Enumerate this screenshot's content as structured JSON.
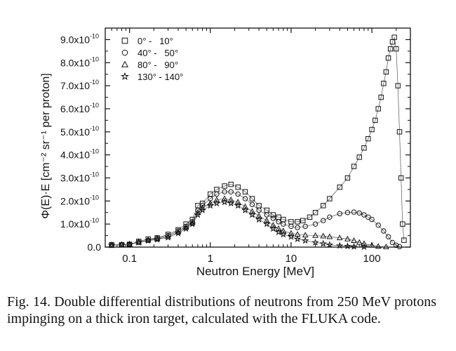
{
  "chart_data": {
    "type": "scatter",
    "title": "",
    "xlabel": "Neutron Energy [MeV]",
    "ylabel": "Φ(E)·E [cm⁻² sr⁻¹ per proton]",
    "x_scale": "log",
    "xlim": [
      0.05,
      300
    ],
    "ylim": [
      0,
      9.5e-10
    ],
    "x_ticks": [
      {
        "value": 0.1,
        "label": "0.1"
      },
      {
        "value": 1,
        "label": "1"
      },
      {
        "value": 10,
        "label": "10"
      },
      {
        "value": 100,
        "label": "100"
      }
    ],
    "y_ticks": [
      {
        "value": 0,
        "label": "0.0"
      },
      {
        "value": 1e-10,
        "label": "1.0x10",
        "exp": "-10"
      },
      {
        "value": 2e-10,
        "label": "2.0x10",
        "exp": "-10"
      },
      {
        "value": 3e-10,
        "label": "3.0x10",
        "exp": "-10"
      },
      {
        "value": 4e-10,
        "label": "4.0x10",
        "exp": "-10"
      },
      {
        "value": 5e-10,
        "label": "5.0x10",
        "exp": "-10"
      },
      {
        "value": 6e-10,
        "label": "6.0x10",
        "exp": "-10"
      },
      {
        "value": 7e-10,
        "label": "7.0x10",
        "exp": "-10"
      },
      {
        "value": 8e-10,
        "label": "8.0x10",
        "exp": "-10"
      },
      {
        "value": 9e-10,
        "label": "9.0x10",
        "exp": "-10"
      }
    ],
    "grid": false,
    "legend_position": "top-left",
    "series": [
      {
        "name": "0° - 10°",
        "marker": "square",
        "x": [
          0.06,
          0.08,
          0.1,
          0.13,
          0.17,
          0.22,
          0.3,
          0.4,
          0.5,
          0.6,
          0.7,
          0.8,
          1.0,
          1.2,
          1.5,
          1.8,
          2.2,
          2.7,
          3.3,
          4,
          5,
          6,
          7,
          8,
          10,
          12,
          14,
          17,
          20,
          25,
          30,
          40,
          50,
          60,
          70,
          80,
          90,
          100,
          110,
          120,
          130,
          140,
          150,
          160,
          170,
          180,
          190,
          200,
          210,
          220,
          230,
          240,
          250
        ],
        "y": [
          1e-11,
          1e-11,
          1.2e-11,
          2.5e-11,
          3.5e-11,
          4e-11,
          5.5e-11,
          7.5e-11,
          1e-10,
          1.2e-10,
          1.8e-10,
          1.9e-10,
          2.3e-10,
          2.5e-10,
          2.65e-10,
          2.72e-10,
          2.6e-10,
          2.4e-10,
          2.1e-10,
          1.8e-10,
          1.6e-10,
          1.4e-10,
          1.3e-10,
          1.2e-10,
          1.1e-10,
          1.1e-10,
          1.15e-10,
          1.3e-10,
          1.5e-10,
          1.8e-10,
          2.1e-10,
          2.6e-10,
          3e-10,
          3.5e-10,
          3.9e-10,
          4.3e-10,
          4.7e-10,
          5.1e-10,
          5.5e-10,
          6e-10,
          6.5e-10,
          7.1e-10,
          7.6e-10,
          8.2e-10,
          8.6e-10,
          8.9e-10,
          9.1e-10,
          8.6e-10,
          7e-10,
          5e-10,
          3e-10,
          1e-10,
          3e-11
        ]
      },
      {
        "name": "40° - 50°",
        "marker": "circle",
        "x": [
          0.06,
          0.08,
          0.1,
          0.13,
          0.17,
          0.22,
          0.3,
          0.4,
          0.5,
          0.6,
          0.7,
          0.8,
          1.0,
          1.2,
          1.5,
          1.8,
          2.2,
          2.7,
          3.3,
          4,
          5,
          6,
          7,
          8,
          10,
          12,
          15,
          20,
          25,
          30,
          40,
          50,
          60,
          70,
          80,
          90,
          100,
          120,
          140,
          160,
          180,
          200,
          220
        ],
        "y": [
          8e-12,
          1e-11,
          1.2e-11,
          2.2e-11,
          3e-11,
          3.8e-11,
          5e-11,
          7e-11,
          9e-11,
          1.1e-10,
          1.6e-10,
          1.8e-10,
          2.1e-10,
          2.3e-10,
          2.4e-10,
          2.4e-10,
          2.3e-10,
          2.1e-10,
          1.85e-10,
          1.6e-10,
          1.4e-10,
          1.25e-10,
          1.1e-10,
          1e-10,
          9e-11,
          8.5e-11,
          9e-11,
          1e-10,
          1.15e-10,
          1.3e-10,
          1.45e-10,
          1.5e-10,
          1.52e-10,
          1.48e-10,
          1.4e-10,
          1.3e-10,
          1.2e-10,
          9.5e-11,
          7e-11,
          4.5e-11,
          2e-11,
          8e-12,
          2e-12
        ]
      },
      {
        "name": "80° - 90°",
        "marker": "triangle",
        "x": [
          0.06,
          0.08,
          0.1,
          0.13,
          0.17,
          0.22,
          0.3,
          0.4,
          0.5,
          0.6,
          0.7,
          0.8,
          1.0,
          1.2,
          1.5,
          1.8,
          2.2,
          2.7,
          3.3,
          4,
          5,
          6,
          7,
          8,
          10,
          12,
          15,
          20,
          25,
          30,
          40,
          50,
          60,
          70,
          80,
          100,
          120,
          150
        ],
        "y": [
          8e-12,
          1e-11,
          1.2e-11,
          2e-11,
          3e-11,
          3.5e-11,
          4.5e-11,
          6.5e-11,
          8.5e-11,
          1.05e-10,
          1.5e-10,
          1.7e-10,
          1.9e-10,
          2.05e-10,
          2.1e-10,
          2.05e-10,
          1.95e-10,
          1.75e-10,
          1.55e-10,
          1.35e-10,
          1.15e-10,
          9.5e-11,
          8e-11,
          7e-11,
          6e-11,
          5.5e-11,
          5.2e-11,
          5e-11,
          4.8e-11,
          4.5e-11,
          4e-11,
          3.5e-11,
          2.8e-11,
          2e-11,
          1.5e-11,
          8e-12,
          3e-12,
          1e-12
        ]
      },
      {
        "name": "130° - 140°",
        "marker": "star",
        "x": [
          0.06,
          0.08,
          0.1,
          0.13,
          0.17,
          0.22,
          0.3,
          0.4,
          0.5,
          0.6,
          0.7,
          0.8,
          1.0,
          1.2,
          1.5,
          1.8,
          2.2,
          2.7,
          3.3,
          4,
          5,
          6,
          7,
          8,
          10,
          12,
          15,
          20,
          25,
          30,
          40,
          50,
          60,
          80
        ],
        "y": [
          8e-12,
          1e-11,
          1.2e-11,
          2e-11,
          2.8e-11,
          3.3e-11,
          4.2e-11,
          6e-11,
          8e-11,
          1e-10,
          1.4e-10,
          1.6e-10,
          1.8e-10,
          1.9e-10,
          1.95e-10,
          1.9e-10,
          1.8e-10,
          1.6e-10,
          1.4e-10,
          1.2e-10,
          1e-10,
          8e-11,
          6.5e-11,
          5.5e-11,
          4.5e-11,
          3.5e-11,
          2.8e-11,
          2e-11,
          1.5e-11,
          1e-11,
          6e-12,
          4e-12,
          2e-12,
          1e-12
        ]
      }
    ]
  },
  "legend": [
    {
      "marker": "square",
      "label": "0° -   10°"
    },
    {
      "marker": "circle",
      "label": "40° -   50°"
    },
    {
      "marker": "triangle",
      "label": "80° -   90°"
    },
    {
      "marker": "star",
      "label": "130° - 140°"
    }
  ],
  "caption": "Fig. 14. Double differential distributions of neutrons from 250 MeV protons impinging on a thick iron target, calculated with the FLUKA code."
}
